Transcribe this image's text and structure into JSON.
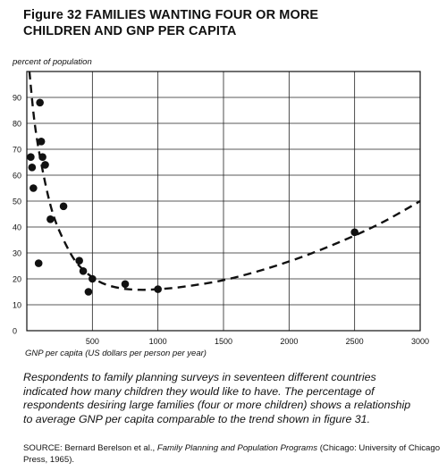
{
  "figure": {
    "title_line1": "Figure 32 FAMILIES WANTING FOUR OR MORE",
    "title_line2": "CHILDREN AND GNP PER CAPITA"
  },
  "caption": "Respondents to family planning surveys in seventeen different countries indicated how many children they would like to have. The percentage of respondents desiring large families (four or more children) shows a relationship to average GNP per capita comparable to the trend shown in figure 31.",
  "source": {
    "prefix": "SOURCE: Bernard Berelson et al., ",
    "book": "Family Planning and Population Programs",
    "suffix": " (Chicago: University of Chicago Press, 1965)."
  },
  "chart_data": {
    "type": "scatter",
    "ylabel": "percent of population",
    "xlabel": "GNP per capita (US dollars per person per year)",
    "xlim": [
      0,
      3000
    ],
    "ylim": [
      0,
      100
    ],
    "grid": true,
    "x_ticks": [
      {
        "value": 500,
        "label": "500"
      },
      {
        "value": 1000,
        "label": "1000"
      },
      {
        "value": 1500,
        "label": "1500"
      },
      {
        "value": 2000,
        "label": "2000"
      },
      {
        "value": 2500,
        "label": "2500"
      },
      {
        "value": 3000,
        "label": "3000"
      }
    ],
    "y_ticks": [
      {
        "value": 0,
        "label": "0"
      },
      {
        "value": 10,
        "label": "10"
      },
      {
        "value": 20,
        "label": "20"
      },
      {
        "value": 30,
        "label": "30"
      },
      {
        "value": 40,
        "label": "40"
      },
      {
        "value": 50,
        "label": "50"
      },
      {
        "value": 60,
        "label": "60"
      },
      {
        "value": 70,
        "label": "70"
      },
      {
        "value": 80,
        "label": "80"
      },
      {
        "value": 90,
        "label": "90"
      }
    ],
    "points": [
      {
        "x": 30,
        "y": 67
      },
      {
        "x": 40,
        "y": 63
      },
      {
        "x": 50,
        "y": 55
      },
      {
        "x": 90,
        "y": 26
      },
      {
        "x": 100,
        "y": 88
      },
      {
        "x": 110,
        "y": 73
      },
      {
        "x": 120,
        "y": 67
      },
      {
        "x": 140,
        "y": 64
      },
      {
        "x": 180,
        "y": 43
      },
      {
        "x": 280,
        "y": 48
      },
      {
        "x": 400,
        "y": 27
      },
      {
        "x": 430,
        "y": 23
      },
      {
        "x": 470,
        "y": 15
      },
      {
        "x": 500,
        "y": 20
      },
      {
        "x": 750,
        "y": 18
      },
      {
        "x": 1000,
        "y": 16
      },
      {
        "x": 2500,
        "y": 38
      }
    ],
    "trend": {
      "style": "dashed",
      "points": [
        {
          "x": 20,
          "y": 100
        },
        {
          "x": 60,
          "y": 80
        },
        {
          "x": 120,
          "y": 62
        },
        {
          "x": 200,
          "y": 45
        },
        {
          "x": 300,
          "y": 33
        },
        {
          "x": 400,
          "y": 25
        },
        {
          "x": 550,
          "y": 19
        },
        {
          "x": 700,
          "y": 16.5
        },
        {
          "x": 850,
          "y": 15.8
        },
        {
          "x": 1000,
          "y": 16
        },
        {
          "x": 1200,
          "y": 17
        },
        {
          "x": 1500,
          "y": 19.5
        },
        {
          "x": 1800,
          "y": 23.5
        },
        {
          "x": 2100,
          "y": 28.5
        },
        {
          "x": 2400,
          "y": 34.5
        },
        {
          "x": 2700,
          "y": 41.5
        },
        {
          "x": 3000,
          "y": 50
        }
      ]
    }
  }
}
